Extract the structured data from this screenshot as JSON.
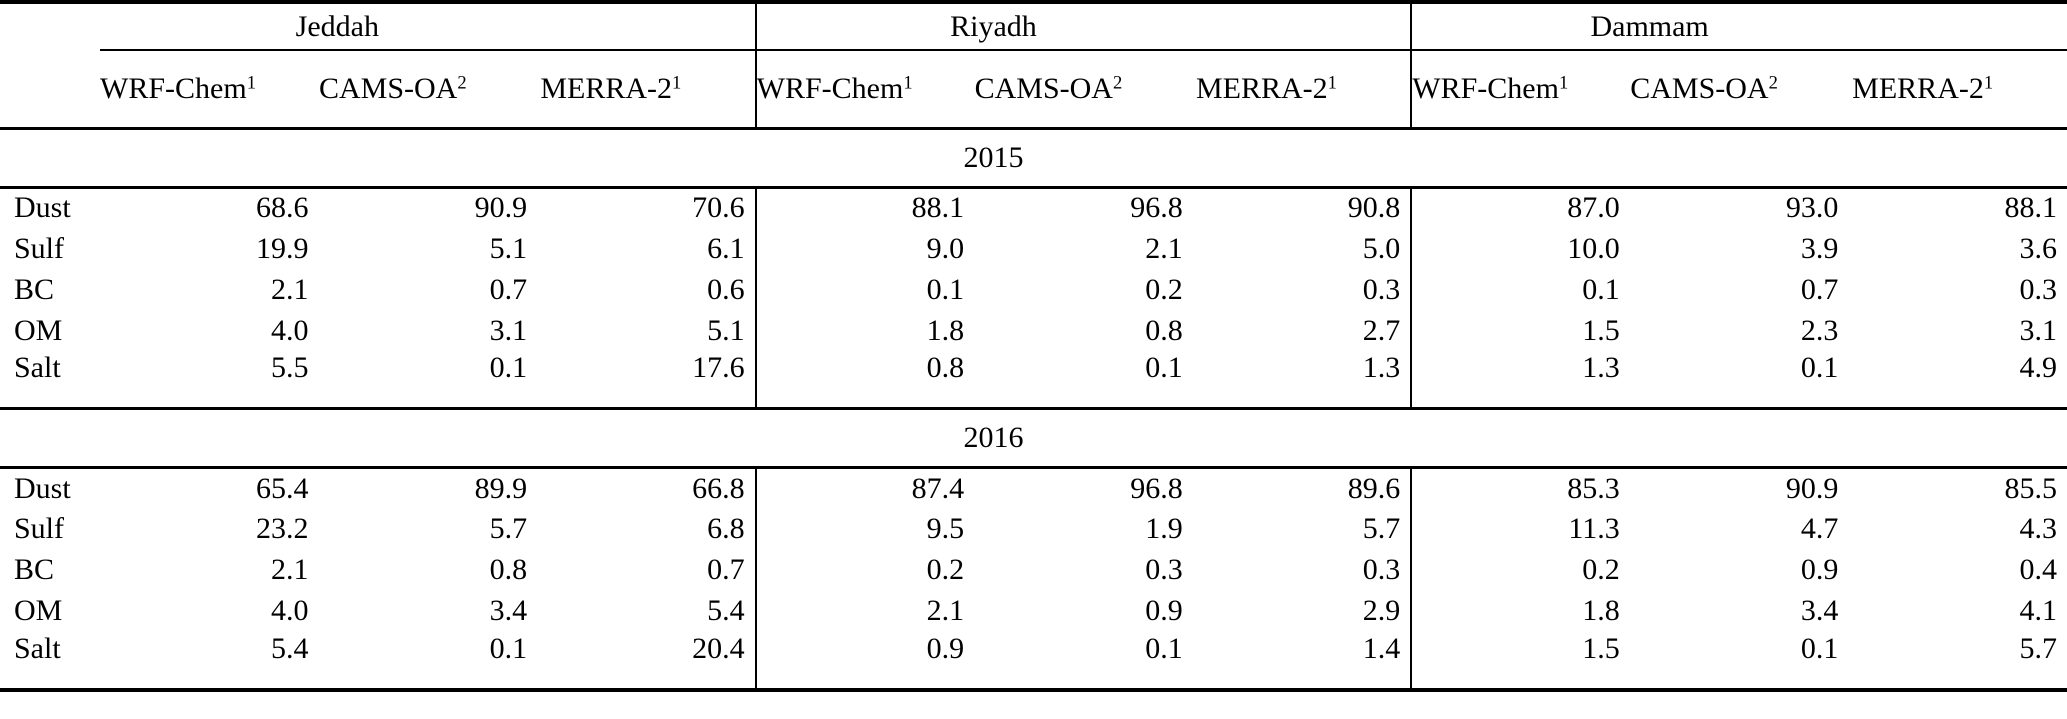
{
  "chart_data": {
    "type": "table",
    "city_groups": [
      "Jeddah",
      "Riyadh",
      "Dammam"
    ],
    "model_columns": [
      {
        "label": "WRF-Chem",
        "superscript": "1"
      },
      {
        "label": "CAMS-OA",
        "superscript": "2"
      },
      {
        "label": "MERRA-2",
        "superscript": "1"
      }
    ],
    "sections": [
      {
        "year": "2015",
        "rows": [
          {
            "label": "Dust",
            "values": [
              "68.6",
              "90.9",
              "70.6",
              "88.1",
              "96.8",
              "90.8",
              "87.0",
              "93.0",
              "88.1"
            ]
          },
          {
            "label": "Sulf",
            "values": [
              "19.9",
              "5.1",
              "6.1",
              "9.0",
              "2.1",
              "5.0",
              "10.0",
              "3.9",
              "3.6"
            ]
          },
          {
            "label": "BC",
            "values": [
              "2.1",
              "0.7",
              "0.6",
              "0.1",
              "0.2",
              "0.3",
              "0.1",
              "0.7",
              "0.3"
            ]
          },
          {
            "label": "OM",
            "values": [
              "4.0",
              "3.1",
              "5.1",
              "1.8",
              "0.8",
              "2.7",
              "1.5",
              "2.3",
              "3.1"
            ]
          },
          {
            "label": "Salt",
            "values": [
              "5.5",
              "0.1",
              "17.6",
              "0.8",
              "0.1",
              "1.3",
              "1.3",
              "0.1",
              "4.9"
            ]
          }
        ]
      },
      {
        "year": "2016",
        "rows": [
          {
            "label": "Dust",
            "values": [
              "65.4",
              "89.9",
              "66.8",
              "87.4",
              "96.8",
              "89.6",
              "85.3",
              "90.9",
              "85.5"
            ]
          },
          {
            "label": "Sulf",
            "values": [
              "23.2",
              "5.7",
              "6.8",
              "9.5",
              "1.9",
              "5.7",
              "11.3",
              "4.7",
              "4.3"
            ]
          },
          {
            "label": "BC",
            "values": [
              "2.1",
              "0.8",
              "0.7",
              "0.2",
              "0.3",
              "0.3",
              "0.2",
              "0.9",
              "0.4"
            ]
          },
          {
            "label": "OM",
            "values": [
              "4.0",
              "3.4",
              "5.4",
              "2.1",
              "0.9",
              "2.9",
              "1.8",
              "3.4",
              "4.1"
            ]
          },
          {
            "label": "Salt",
            "values": [
              "5.4",
              "0.1",
              "20.4",
              "0.9",
              "0.1",
              "1.4",
              "1.5",
              "0.1",
              "5.7"
            ]
          }
        ]
      }
    ]
  }
}
